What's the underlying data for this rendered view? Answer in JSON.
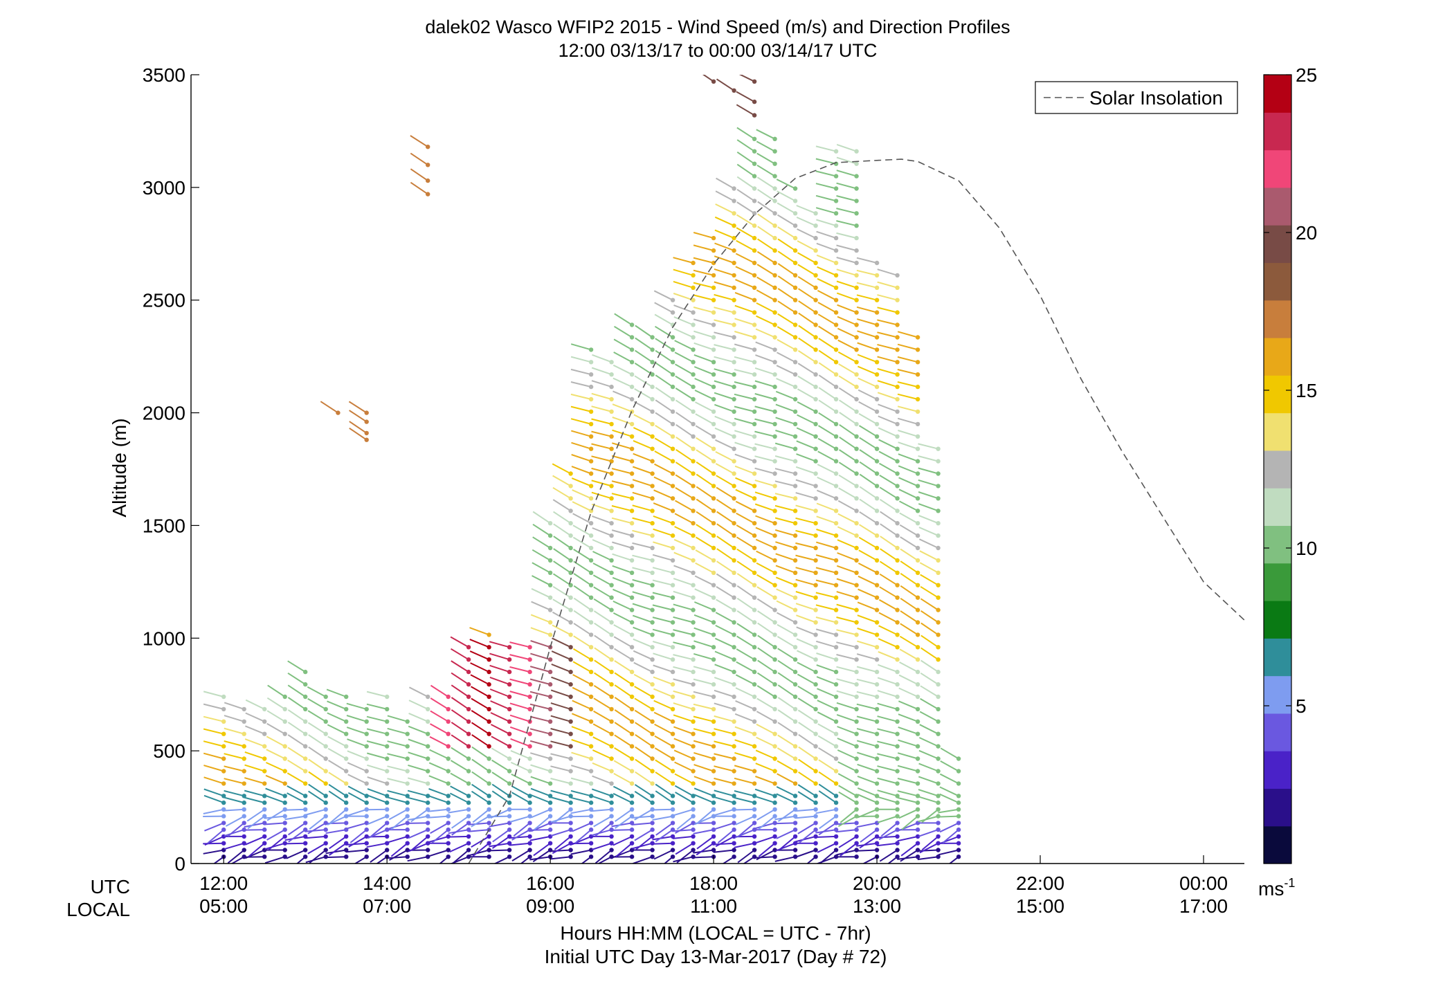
{
  "title_line1": "dalek02 Wasco WFIP2 2015 - Wind Speed (m/s) and Direction Profiles",
  "title_line2": "12:00 03/13/17 to 00:00 03/14/17  UTC",
  "ylabel": "Altitude (m)",
  "row_label_utc": "UTC",
  "row_label_local": "LOCAL",
  "xlabel_line1": "Hours HH:MM  (LOCAL = UTC - 7hr)",
  "xlabel_line2": "Initial UTC Day 13-Mar-2017 (Day # 72)",
  "legend_label": "Solar Insolation",
  "colorbar_unit": "ms",
  "colorbar_unit_sup": "-1",
  "colors": {
    "insolation_line": "#555555",
    "axis": "#000000",
    "colormap": [
      "#0a0a3c",
      "#2a0f8a",
      "#4a22c8",
      "#6a58e0",
      "#7e9cf0",
      "#2f8e9a",
      "#0a7a14",
      "#3a9a3a",
      "#80c080",
      "#c0dcc0",
      "#b4b4b4",
      "#f0e070",
      "#f0c800",
      "#e8a818",
      "#c87e3c",
      "#8c5a3c",
      "#784b46",
      "#aa5a6e",
      "#f04678",
      "#c82850",
      "#b40014"
    ]
  },
  "chart_data": {
    "type": "wind barb profile",
    "title": "dalek02 Wasco WFIP2 2015 - Wind Speed (m/s) and Direction Profiles",
    "subtitle": "12:00 03/13/17 to 00:00 03/14/17  UTC",
    "ylabel": "Altitude (m)",
    "xlabel": "Hours HH:MM  (LOCAL = UTC - 7hr)",
    "x_units": "hours UTC from 12:00 03/13/17",
    "xlim": [
      11.6,
      24.5
    ],
    "ylim": [
      0,
      3500
    ],
    "yticks": [
      0,
      500,
      1000,
      1500,
      2000,
      2500,
      3000,
      3500
    ],
    "xticks": [
      {
        "x": 12,
        "utc": "12:00",
        "local": "05:00"
      },
      {
        "x": 14,
        "utc": "14:00",
        "local": "07:00"
      },
      {
        "x": 16,
        "utc": "16:00",
        "local": "09:00"
      },
      {
        "x": 18,
        "utc": "18:00",
        "local": "11:00"
      },
      {
        "x": 20,
        "utc": "20:00",
        "local": "13:00"
      },
      {
        "x": 22,
        "utc": "22:00",
        "local": "15:00"
      },
      {
        "x": 24,
        "utc": "00:00",
        "local": "17:00"
      }
    ],
    "colorbar": {
      "label": "ms-1",
      "range": [
        0,
        25
      ],
      "ticks": [
        5,
        10,
        15,
        20,
        25
      ]
    },
    "solar_insolation": {
      "name": "Solar Insolation",
      "style": "dashed",
      "x": [
        15.0,
        15.5,
        16.0,
        16.5,
        17.0,
        17.5,
        18.0,
        18.5,
        19.0,
        19.5,
        20.0,
        20.3,
        20.5,
        21.0,
        21.5,
        22.0,
        22.5,
        23.0,
        23.5,
        24.0,
        24.5
      ],
      "y": [
        0,
        300,
        960,
        1560,
        2010,
        2380,
        2660,
        2880,
        3040,
        3110,
        3120,
        3125,
        3115,
        3030,
        2820,
        2520,
        2150,
        1830,
        1540,
        1250,
        1080
      ]
    },
    "barb_columns": [
      {
        "x": 12.0,
        "ztop": 780
      },
      {
        "x": 12.25,
        "ztop": 690
      },
      {
        "x": 12.5,
        "ztop": 710
      },
      {
        "x": 12.75,
        "ztop": 760
      },
      {
        "x": 13.0,
        "ztop": 880
      },
      {
        "x": 13.25,
        "ztop": 770
      },
      {
        "x": 13.5,
        "ztop": 760
      },
      {
        "x": 13.75,
        "ztop": 720
      },
      {
        "x": 14.0,
        "ztop": 760
      },
      {
        "x": 14.25,
        "ztop": 660
      },
      {
        "x": 14.5,
        "ztop": 760
      },
      {
        "x": 14.75,
        "ztop": 760
      },
      {
        "x": 15.0,
        "ztop": 990
      },
      {
        "x": 15.25,
        "ztop": 1050
      },
      {
        "x": 15.5,
        "ztop": 1000
      },
      {
        "x": 15.75,
        "ztop": 960
      },
      {
        "x": 16.0,
        "ztop": 1520
      },
      {
        "x": 16.25,
        "ztop": 1740
      },
      {
        "x": 16.5,
        "ztop": 2320
      },
      {
        "x": 16.75,
        "ztop": 2260
      },
      {
        "x": 17.0,
        "ztop": 2440
      },
      {
        "x": 17.25,
        "ztop": 2360
      },
      {
        "x": 17.5,
        "ztop": 2550
      },
      {
        "x": 17.75,
        "ztop": 2690
      },
      {
        "x": 18.0,
        "ztop": 2810
      },
      {
        "x": 18.25,
        "ztop": 3040
      },
      {
        "x": 18.5,
        "ztop": 3230
      },
      {
        "x": 18.75,
        "ztop": 3230
      },
      {
        "x": 19.0,
        "ztop": 3040
      },
      {
        "x": 19.25,
        "ztop": 2930
      },
      {
        "x": 19.5,
        "ztop": 3180
      },
      {
        "x": 19.75,
        "ztop": 3180
      },
      {
        "x": 20.0,
        "ztop": 2680
      },
      {
        "x": 20.25,
        "ztop": 2630
      },
      {
        "x": 20.5,
        "ztop": 2350
      },
      {
        "x": 20.75,
        "ztop": 1890
      },
      {
        "x": 21.0,
        "ztop": 500
      }
    ],
    "isolated_barbs": [
      {
        "x": 13.4,
        "z": 2000
      },
      {
        "x": 13.75,
        "z": 2000
      },
      {
        "x": 13.75,
        "z": 1960
      },
      {
        "x": 13.75,
        "z": 1910
      },
      {
        "x": 13.75,
        "z": 1880
      },
      {
        "x": 14.5,
        "z": 3180
      },
      {
        "x": 14.5,
        "z": 3100
      },
      {
        "x": 14.5,
        "z": 3030
      },
      {
        "x": 14.5,
        "z": 2970
      },
      {
        "x": 18.0,
        "z": 3470
      },
      {
        "x": 18.25,
        "z": 3430
      },
      {
        "x": 18.5,
        "z": 3470
      },
      {
        "x": 18.5,
        "z": 3380
      },
      {
        "x": 18.5,
        "z": 3320
      }
    ]
  }
}
